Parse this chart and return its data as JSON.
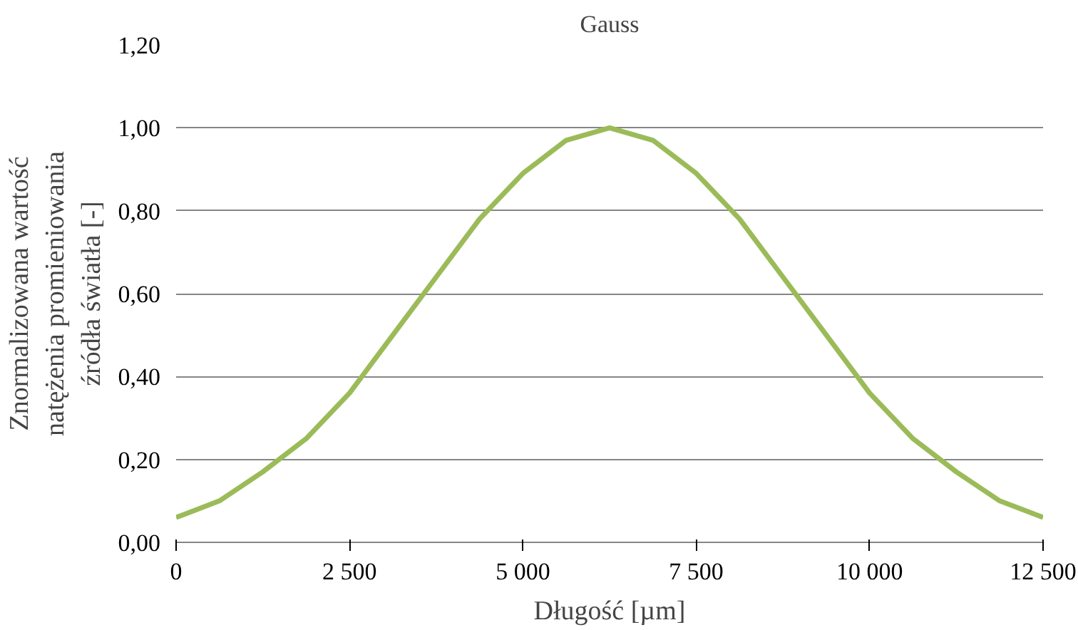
{
  "chart_data": {
    "type": "line",
    "title": "Gauss",
    "xlabel": "Długość [µm]",
    "ylabel": "Znormalizowana wartość natężenia promieniowania źródła światła [-]",
    "x": [
      0,
      625,
      1250,
      1875,
      2500,
      3125,
      3750,
      4375,
      5000,
      5625,
      6250,
      6875,
      7500,
      8125,
      8750,
      9375,
      10000,
      10625,
      11250,
      11875,
      12500
    ],
    "series": [
      {
        "color": "#9bbb59",
        "values": [
          0.06,
          0.1,
          0.17,
          0.25,
          0.36,
          0.5,
          0.64,
          0.78,
          0.89,
          0.97,
          1.0,
          0.97,
          0.89,
          0.78,
          0.64,
          0.5,
          0.36,
          0.25,
          0.17,
          0.1,
          0.06
        ]
      }
    ],
    "xlim": [
      0,
      12500
    ],
    "ylim": [
      0,
      1.2
    ],
    "xticks": [
      0,
      {
        "value": 2500,
        "label": "2 500"
      },
      {
        "value": 5000,
        "label": "5 000"
      },
      {
        "value": 7500,
        "label": "7 500"
      },
      {
        "value": 10000,
        "label": "10 000"
      },
      {
        "value": 12500,
        "label": "12 500"
      }
    ],
    "yticks": [
      {
        "value": 0,
        "label": "0,00"
      },
      {
        "value": 0.2,
        "label": "0,20"
      },
      {
        "value": 0.4,
        "label": "0,40"
      },
      {
        "value": 0.6,
        "label": "0,60"
      },
      {
        "value": 0.8,
        "label": "0,80"
      },
      {
        "value": 1.0,
        "label": "1,00"
      },
      {
        "value": 1.2,
        "label": "1,20"
      }
    ],
    "grid": "y",
    "marker": "none",
    "line_style": "solid"
  }
}
